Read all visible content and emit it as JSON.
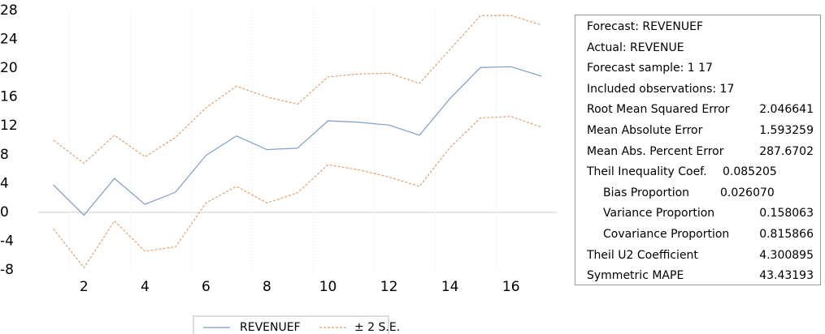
{
  "chart_data": {
    "type": "line",
    "x": [
      1,
      2,
      3,
      4,
      5,
      6,
      7,
      8,
      9,
      10,
      11,
      12,
      13,
      14,
      15,
      16,
      17
    ],
    "series": [
      {
        "name": "REVENUEF",
        "color": "#7f9cc9",
        "values": [
          3.8,
          -0.4,
          4.7,
          1.1,
          2.8,
          7.9,
          10.6,
          8.7,
          8.9,
          12.7,
          12.5,
          12.1,
          10.7,
          15.8,
          20.1,
          20.2,
          18.9
        ]
      },
      {
        "name": "± 2 S.E.",
        "color": "#e0a070",
        "upper": [
          10.0,
          6.8,
          10.7,
          7.7,
          10.4,
          14.5,
          17.5,
          16.0,
          15.0,
          18.8,
          19.2,
          19.3,
          17.9,
          22.6,
          27.3,
          27.3,
          26.0
        ],
        "lower": [
          -2.3,
          -7.7,
          -1.2,
          -5.4,
          -4.8,
          1.3,
          3.6,
          1.3,
          2.7,
          6.6,
          5.9,
          4.9,
          3.6,
          9.0,
          13.1,
          13.3,
          11.8
        ]
      }
    ],
    "xlim": [
      0.5,
      17.5
    ],
    "xticks": [
      2,
      4,
      6,
      8,
      10,
      12,
      14,
      16
    ],
    "ylim": [
      -8,
      28
    ],
    "yticks": [
      -8,
      -4,
      0,
      4,
      8,
      12,
      16,
      20,
      24,
      28
    ]
  },
  "stats": {
    "lines": [
      "Forecast: REVENUEF",
      "Actual: REVENUE",
      "Forecast sample: 1 17",
      "Included observations: 17"
    ],
    "rows": [
      {
        "label": "Root Mean Squared Error",
        "value": "2.046641"
      },
      {
        "label": "Mean Absolute Error",
        "value": "1.593259"
      },
      {
        "label": "Mean Abs. Percent Error",
        "value": "287.6702"
      },
      {
        "label": "Theil Inequality Coef.",
        "value": "0.085205"
      },
      {
        "label": "Bias Proportion",
        "value": "0.026070"
      },
      {
        "label": "Variance Proportion",
        "value": "0.158063"
      },
      {
        "label": "Covariance Proportion",
        "value": "0.815866"
      },
      {
        "label": "Theil U2 Coefficient",
        "value": "4.300895"
      },
      {
        "label": "Symmetric MAPE",
        "value": "43.43193"
      }
    ]
  }
}
